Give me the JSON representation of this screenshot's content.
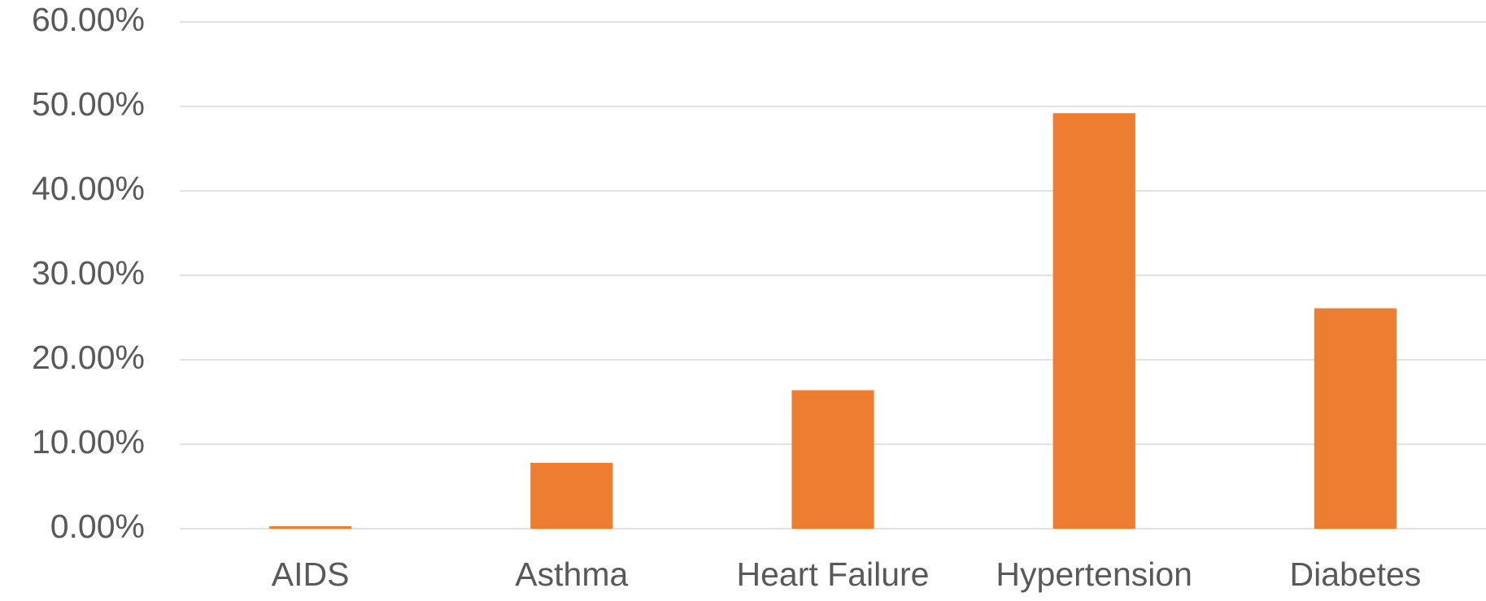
{
  "chart_data": {
    "type": "bar",
    "categories": [
      "AIDS",
      "Asthma",
      "Heart Failure",
      "Hypertension",
      "Diabetes"
    ],
    "values": [
      0.3,
      7.8,
      16.4,
      49.2,
      26.1
    ],
    "color": "#ed7d31",
    "ylim": [
      0,
      60
    ],
    "yticks": [
      {
        "value": 0,
        "label": "0.00%"
      },
      {
        "value": 10,
        "label": "10.00%"
      },
      {
        "value": 20,
        "label": "20.00%"
      },
      {
        "value": 30,
        "label": "30.00%"
      },
      {
        "value": 40,
        "label": "40.00%"
      },
      {
        "value": 50,
        "label": "50.00%"
      },
      {
        "value": 60,
        "label": "60.00%"
      }
    ],
    "grid": true
  }
}
